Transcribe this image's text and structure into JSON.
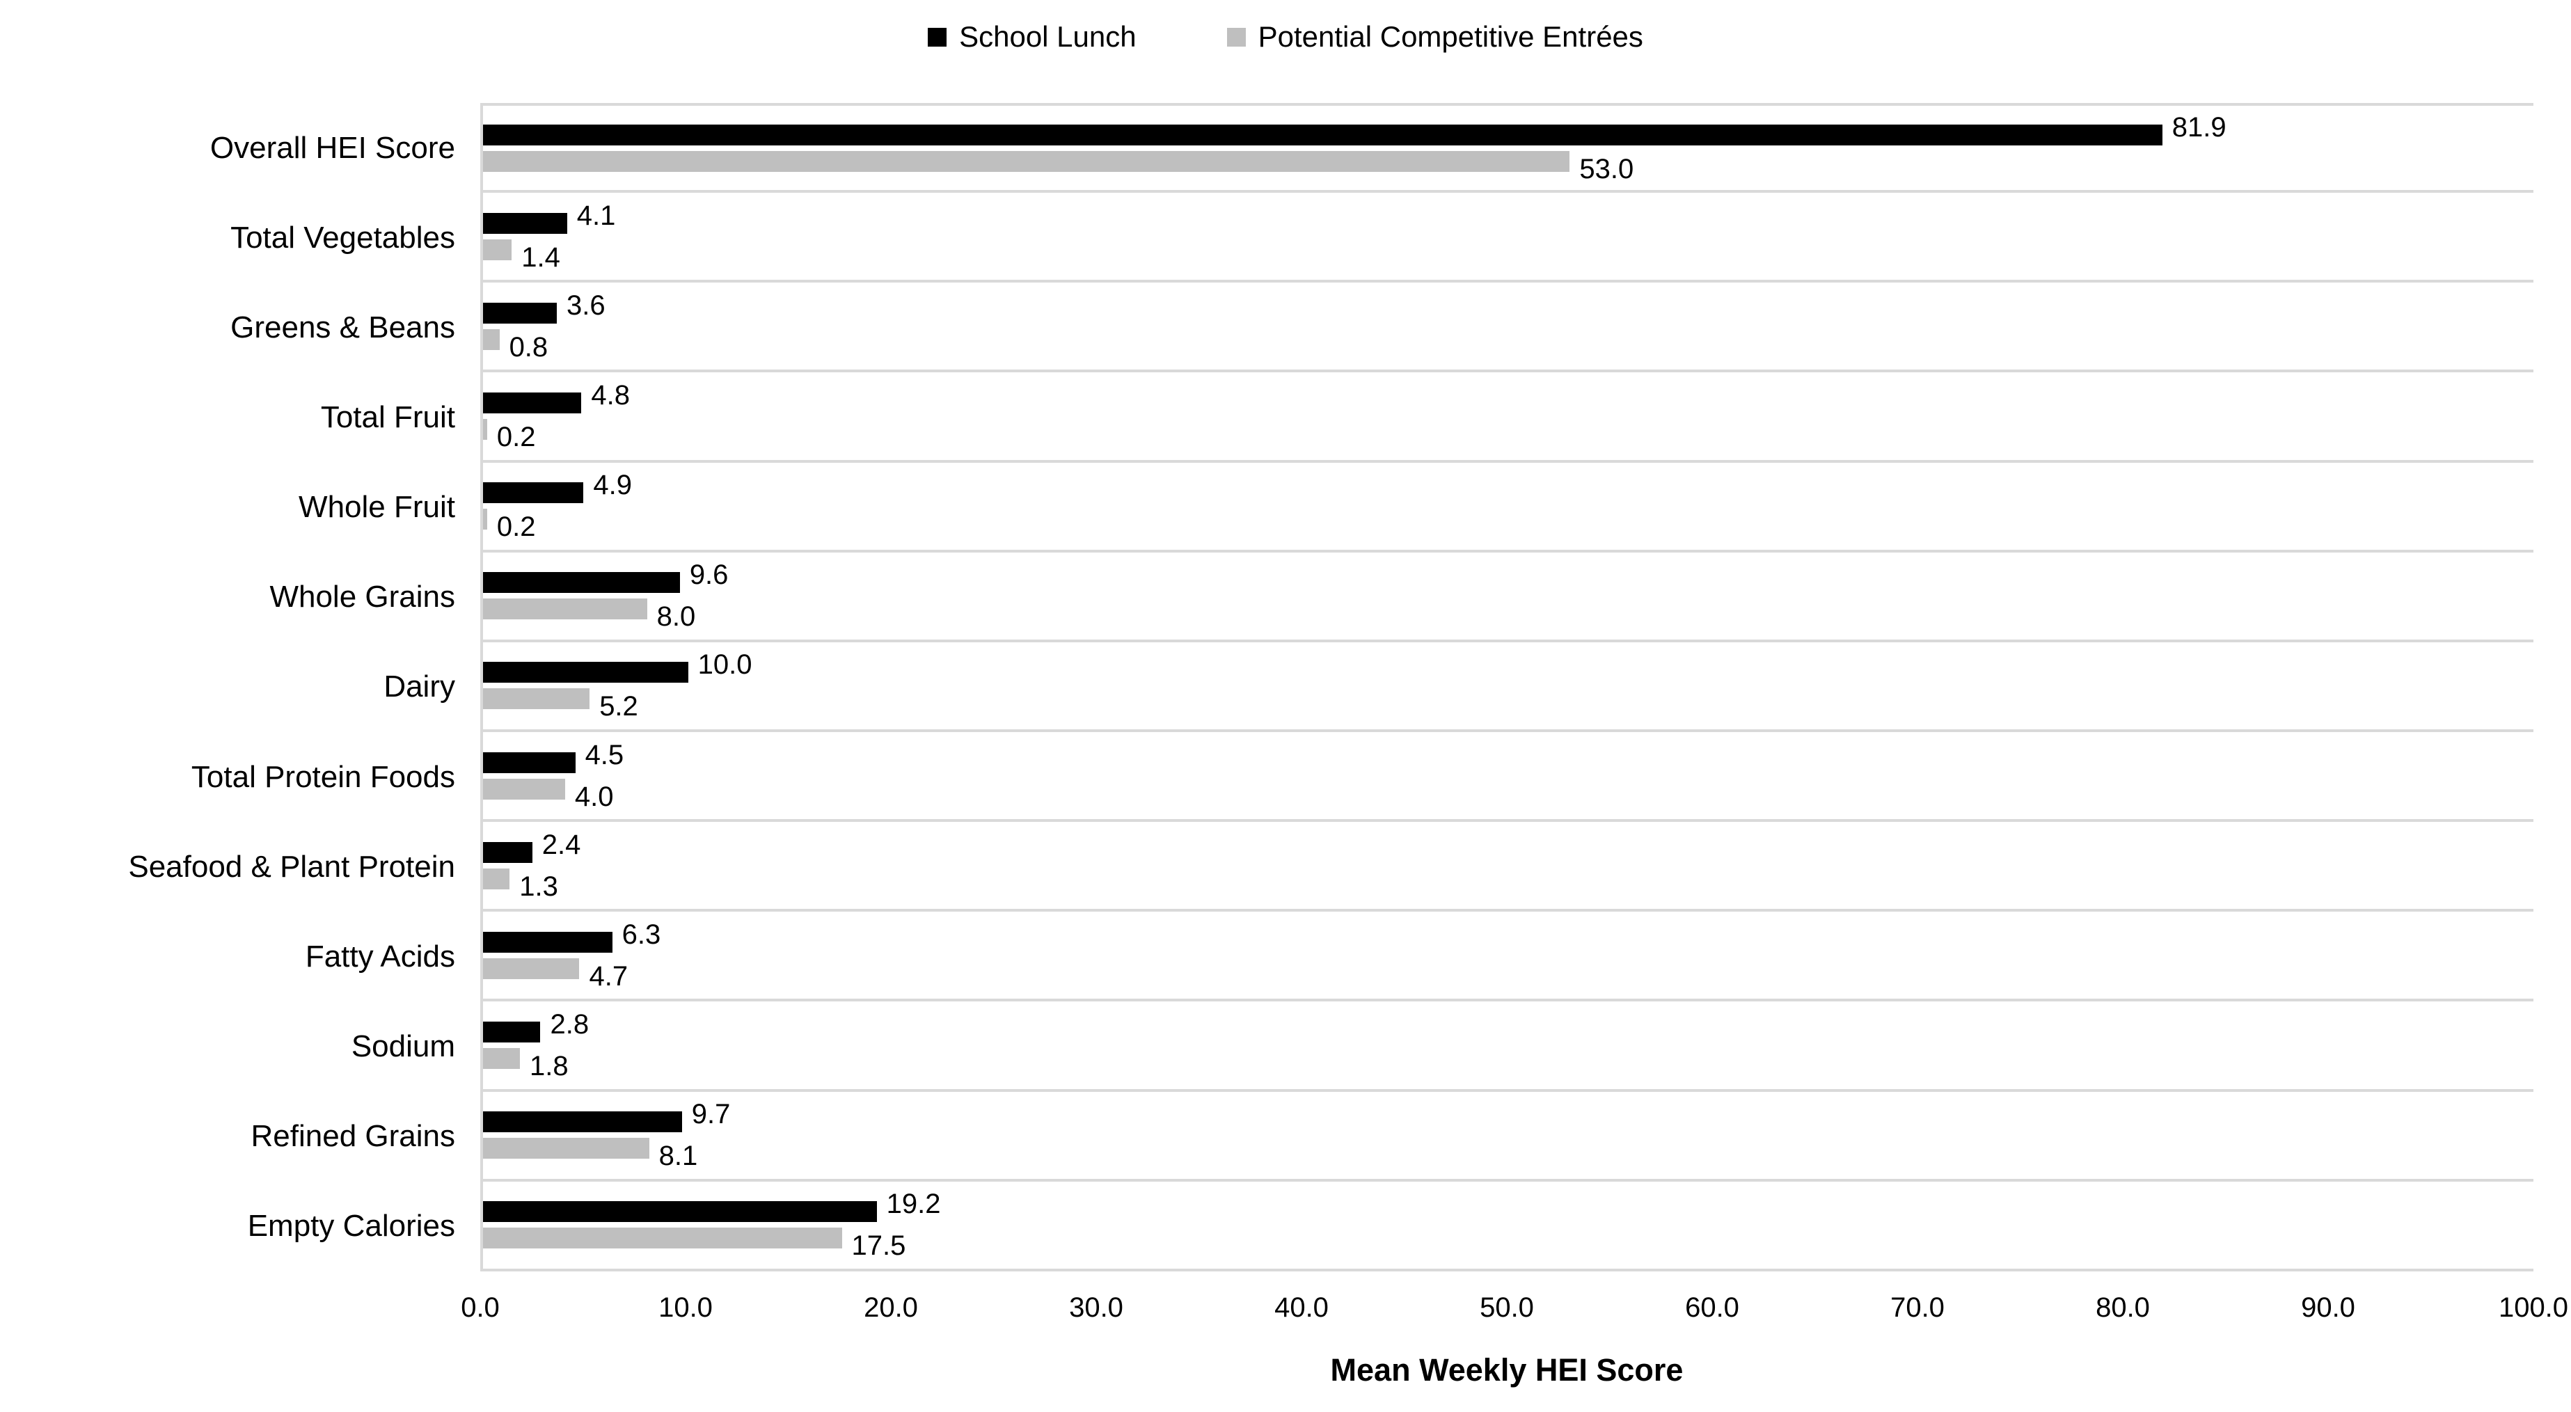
{
  "chart_data": {
    "type": "bar",
    "orientation": "horizontal",
    "title": "",
    "xlabel": "Mean Weekly HEI Score",
    "ylabel": "",
    "xlim": [
      0,
      100
    ],
    "x_ticks": [
      "0.0",
      "10.0",
      "20.0",
      "30.0",
      "40.0",
      "50.0",
      "60.0",
      "70.0",
      "80.0",
      "90.0",
      "100.0"
    ],
    "grid": "horizontal category separators, light gray; vertical axis line at 0",
    "legend_position": "top-center",
    "value_label_format": "one-decimal, outside end of bar",
    "categories": [
      "Overall HEI Score",
      "Total Vegetables",
      "Greens & Beans",
      "Total Fruit",
      "Whole Fruit",
      "Whole Grains",
      "Dairy",
      "Total Protein Foods",
      "Seafood & Plant Protein",
      "Fatty Acids",
      "Sodium",
      "Refined Grains",
      "Empty Calories"
    ],
    "series": [
      {
        "name": "School Lunch",
        "color": "#000000",
        "values": [
          81.9,
          4.1,
          3.6,
          4.8,
          4.9,
          9.6,
          10.0,
          4.5,
          2.4,
          6.3,
          2.8,
          9.7,
          19.2
        ]
      },
      {
        "name": "Potential Competitive Entrées",
        "color": "#bfbfbf",
        "values": [
          53.0,
          1.4,
          0.8,
          0.2,
          0.2,
          8.0,
          5.2,
          4.0,
          1.3,
          4.7,
          1.8,
          8.1,
          17.5
        ]
      }
    ]
  },
  "colors": {
    "background": "#ffffff",
    "gridline": "#d9d9d9",
    "axis_line": "#d9d9d9",
    "text": "#000000"
  }
}
